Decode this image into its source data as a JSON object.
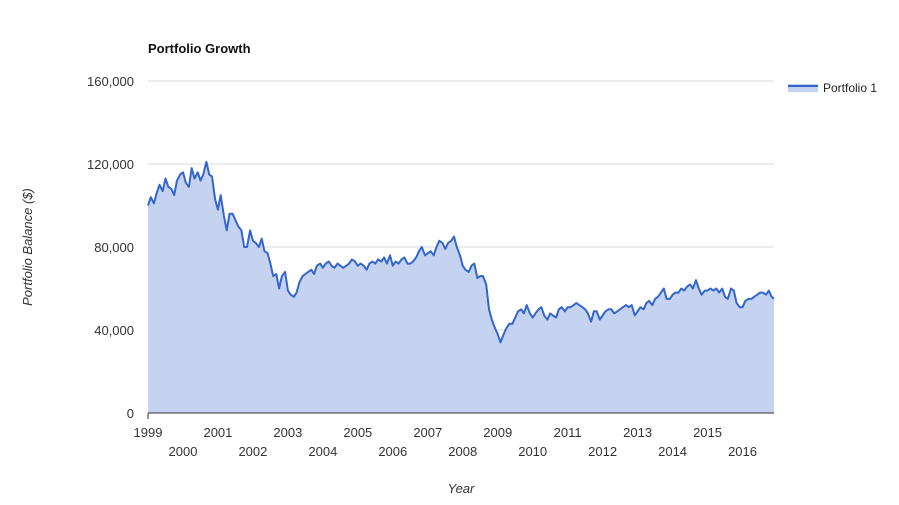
{
  "chart_data": {
    "type": "area",
    "title": "Portfolio Growth",
    "xlabel": "Year",
    "ylabel": "Portfolio Balance ($)",
    "ylim": [
      0,
      160000
    ],
    "xlim": [
      1999.0,
      2016.9
    ],
    "y_ticks": [
      0,
      40000,
      80000,
      120000,
      160000
    ],
    "y_tick_labels": [
      "0",
      "40,000",
      "80,000",
      "120,000",
      "160,000"
    ],
    "x_ticks": [
      1999,
      2000,
      2001,
      2002,
      2003,
      2004,
      2005,
      2006,
      2007,
      2008,
      2009,
      2010,
      2011,
      2012,
      2013,
      2014,
      2015,
      2016
    ],
    "x_tick_labels": [
      "1999",
      "2000",
      "2001",
      "2002",
      "2003",
      "2004",
      "2005",
      "2006",
      "2007",
      "2008",
      "2009",
      "2010",
      "2011",
      "2012",
      "2013",
      "2014",
      "2015",
      "2016"
    ],
    "grid": true,
    "legend_position": "top-right",
    "colors": {
      "line": "#3366cc",
      "fill": "#c6d3f0",
      "grid": "#d9d9d9",
      "axis": "#333333"
    },
    "series": [
      {
        "name": "Portfolio 1",
        "x": [
          1999.0,
          1999.08,
          1999.17,
          1999.25,
          1999.33,
          1999.42,
          1999.5,
          1999.58,
          1999.67,
          1999.75,
          1999.83,
          1999.92,
          2000.0,
          2000.08,
          2000.17,
          2000.25,
          2000.33,
          2000.42,
          2000.5,
          2000.58,
          2000.67,
          2000.75,
          2000.83,
          2000.92,
          2001.0,
          2001.08,
          2001.17,
          2001.25,
          2001.33,
          2001.42,
          2001.5,
          2001.58,
          2001.67,
          2001.75,
          2001.83,
          2001.92,
          2002.0,
          2002.08,
          2002.17,
          2002.25,
          2002.33,
          2002.42,
          2002.5,
          2002.58,
          2002.67,
          2002.75,
          2002.83,
          2002.92,
          2003.0,
          2003.08,
          2003.17,
          2003.25,
          2003.33,
          2003.42,
          2003.5,
          2003.58,
          2003.67,
          2003.75,
          2003.83,
          2003.92,
          2004.0,
          2004.08,
          2004.17,
          2004.25,
          2004.33,
          2004.42,
          2004.5,
          2004.58,
          2004.67,
          2004.75,
          2004.83,
          2004.92,
          2005.0,
          2005.08,
          2005.17,
          2005.25,
          2005.33,
          2005.42,
          2005.5,
          2005.58,
          2005.67,
          2005.75,
          2005.83,
          2005.92,
          2006.0,
          2006.08,
          2006.17,
          2006.25,
          2006.33,
          2006.42,
          2006.5,
          2006.58,
          2006.67,
          2006.75,
          2006.83,
          2006.92,
          2007.0,
          2007.08,
          2007.17,
          2007.25,
          2007.33,
          2007.42,
          2007.5,
          2007.58,
          2007.67,
          2007.75,
          2007.83,
          2007.92,
          2008.0,
          2008.08,
          2008.17,
          2008.25,
          2008.33,
          2008.42,
          2008.5,
          2008.58,
          2008.67,
          2008.75,
          2008.83,
          2008.92,
          2009.0,
          2009.08,
          2009.17,
          2009.25,
          2009.33,
          2009.42,
          2009.5,
          2009.58,
          2009.67,
          2009.75,
          2009.83,
          2009.92,
          2010.0,
          2010.08,
          2010.17,
          2010.25,
          2010.33,
          2010.42,
          2010.5,
          2010.58,
          2010.67,
          2010.75,
          2010.83,
          2010.92,
          2011.0,
          2011.08,
          2011.17,
          2011.25,
          2011.33,
          2011.42,
          2011.5,
          2011.58,
          2011.67,
          2011.75,
          2011.83,
          2011.92,
          2012.0,
          2012.08,
          2012.17,
          2012.25,
          2012.33,
          2012.42,
          2012.5,
          2012.58,
          2012.67,
          2012.75,
          2012.83,
          2012.92,
          2013.0,
          2013.08,
          2013.17,
          2013.25,
          2013.33,
          2013.42,
          2013.5,
          2013.58,
          2013.67,
          2013.75,
          2013.83,
          2013.92,
          2014.0,
          2014.08,
          2014.17,
          2014.25,
          2014.33,
          2014.42,
          2014.5,
          2014.58,
          2014.67,
          2014.75,
          2014.83,
          2014.92,
          2015.0,
          2015.08,
          2015.17,
          2015.25,
          2015.33,
          2015.42,
          2015.5,
          2015.58,
          2015.67,
          2015.75,
          2015.83,
          2015.92,
          2016.0,
          2016.08,
          2016.17,
          2016.25,
          2016.33,
          2016.42,
          2016.5,
          2016.58,
          2016.67,
          2016.75,
          2016.83,
          2016.9
        ],
        "values": [
          100000,
          104000,
          101000,
          106000,
          110000,
          107000,
          113000,
          109000,
          108000,
          105000,
          112000,
          115000,
          116000,
          111000,
          109000,
          118000,
          113000,
          116000,
          112000,
          115000,
          121000,
          115000,
          114000,
          103000,
          98000,
          105000,
          95000,
          88000,
          96000,
          96000,
          93000,
          90000,
          88000,
          80000,
          80000,
          88000,
          83000,
          82000,
          80000,
          84000,
          78000,
          77000,
          72000,
          66000,
          67000,
          60000,
          66000,
          68000,
          59000,
          57000,
          56000,
          58000,
          63000,
          66000,
          67000,
          68000,
          69000,
          67000,
          71000,
          72000,
          70000,
          72000,
          73000,
          71000,
          70000,
          72000,
          71000,
          70000,
          71000,
          72000,
          74000,
          73000,
          71000,
          72000,
          71000,
          69000,
          72000,
          73000,
          72000,
          74000,
          73000,
          75000,
          72000,
          76000,
          71000,
          73000,
          72000,
          74000,
          75000,
          72000,
          72000,
          73000,
          75000,
          78000,
          80000,
          76000,
          77000,
          78000,
          76000,
          80000,
          83000,
          82000,
          79000,
          82000,
          83000,
          85000,
          80000,
          76000,
          71000,
          69000,
          68000,
          71000,
          72000,
          65000,
          66000,
          66000,
          62000,
          50000,
          45000,
          41000,
          38000,
          34000,
          38000,
          41000,
          43000,
          43000,
          46000,
          49000,
          50000,
          48000,
          52000,
          48000,
          46000,
          48000,
          50000,
          51000,
          47000,
          45000,
          48000,
          47000,
          46000,
          50000,
          51000,
          49000,
          51000,
          51000,
          52000,
          53000,
          52000,
          51000,
          50000,
          48000,
          44000,
          49000,
          49000,
          45000,
          47000,
          49000,
          50000,
          50000,
          48000,
          49000,
          50000,
          51000,
          52000,
          51000,
          52000,
          47000,
          49000,
          51000,
          50000,
          53000,
          54000,
          52000,
          55000,
          56000,
          58000,
          60000,
          55000,
          55000,
          57000,
          58000,
          58000,
          60000,
          59000,
          61000,
          62000,
          60000,
          64000,
          60000,
          57000,
          59000,
          59000,
          60000,
          59000,
          60000,
          58000,
          60000,
          56000,
          55000,
          60000,
          59000,
          53000,
          51000,
          51000,
          54000,
          55000,
          55000,
          56000,
          57000,
          58000,
          58000,
          57000,
          59000,
          56000,
          55000
        ]
      }
    ]
  }
}
